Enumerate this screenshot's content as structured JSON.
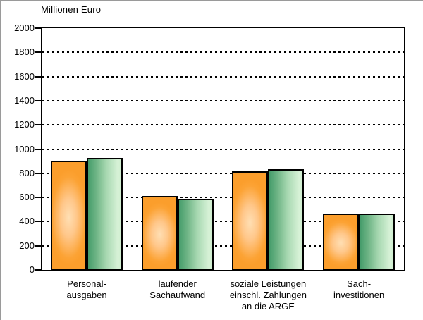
{
  "title": "Millionen Euro",
  "chart_data": {
    "type": "bar",
    "title": "Millionen Euro",
    "ylabel": "Millionen Euro",
    "xlabel": "",
    "ylim": [
      0,
      2000
    ],
    "ytick_step": 200,
    "ytick_labels": [
      "0",
      "200",
      "400",
      "600",
      "800",
      "1000",
      "1200",
      "1400",
      "1600",
      "1800",
      "2000"
    ],
    "grid": "horizontal-dashed",
    "legend": "none",
    "categories": [
      "Personal-\nausgaben",
      "laufender\nSachaufwand",
      "soziale Leistungen\neinschl. Zahlungen\nan  die ARGE",
      "Sach-\ninvestitionen"
    ],
    "series": [
      {
        "name": "orange-series",
        "color": "#FCA335",
        "values": [
          890,
          600,
          805,
          455
        ]
      },
      {
        "name": "green-series",
        "color": "#7FBF92",
        "values": [
          915,
          575,
          820,
          455
        ]
      }
    ]
  },
  "colors": {
    "bar_orange_edge": "#FB9E2C",
    "bar_orange_center": "#FFDFB4",
    "bar_green_dark": "#459C6B",
    "bar_green_light": "#D7F2D7",
    "bar_outline": "#000000",
    "grid": "#000000",
    "text": "#000000",
    "background": "#FFFFFF"
  }
}
